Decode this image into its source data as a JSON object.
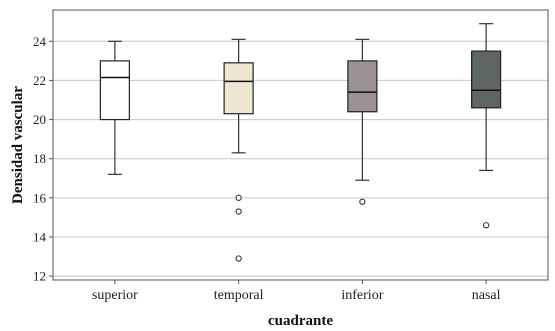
{
  "chart_data": {
    "type": "boxplot",
    "xlabel": "cuadrante",
    "ylabel": "Densidad vascular",
    "ylim": [
      11.8,
      25.6
    ],
    "yticks": [
      12,
      14,
      16,
      18,
      20,
      22,
      24
    ],
    "grid": "horizontal",
    "categories": [
      "superior",
      "temporal",
      "inferior",
      "nasal"
    ],
    "boxes": [
      {
        "category": "superior",
        "whisker_low": 17.2,
        "q1": 20.0,
        "median": 22.15,
        "q3": 23.0,
        "whisker_high": 24.0,
        "outliers": [],
        "fill": "#ffffff"
      },
      {
        "category": "temporal",
        "whisker_low": 18.3,
        "q1": 20.3,
        "median": 21.95,
        "q3": 22.9,
        "whisker_high": 24.1,
        "outliers": [
          16.0,
          15.3,
          12.9
        ],
        "fill": "#ede7cf"
      },
      {
        "category": "inferior",
        "whisker_low": 16.9,
        "q1": 20.4,
        "median": 21.4,
        "q3": 23.0,
        "whisker_high": 24.1,
        "outliers": [
          15.8
        ],
        "fill": "#9a9294"
      },
      {
        "category": "nasal",
        "whisker_low": 17.4,
        "q1": 20.6,
        "median": 21.5,
        "q3": 23.5,
        "whisker_high": 24.9,
        "outliers": [
          14.6
        ],
        "fill": "#5d6660"
      }
    ]
  }
}
